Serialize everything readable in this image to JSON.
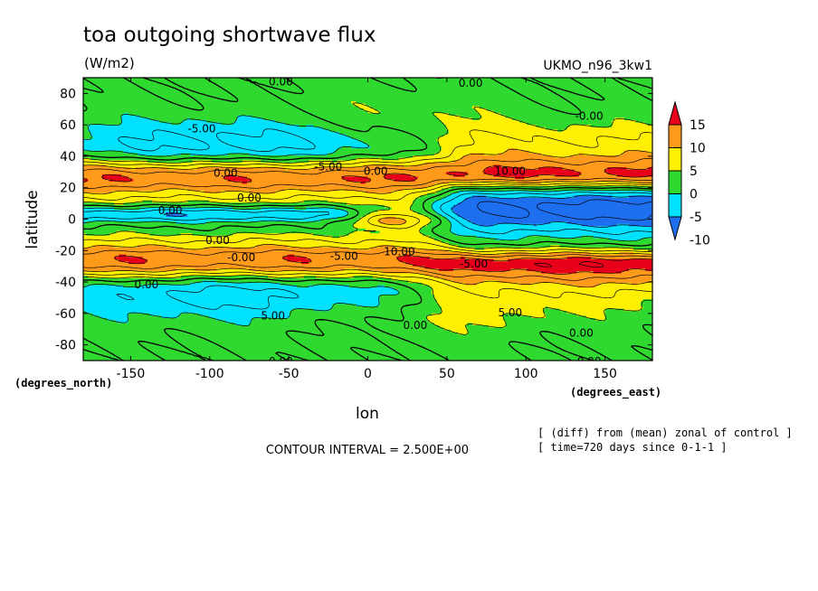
{
  "title": "toa outgoing shortwave flux",
  "units": "(W/m2)",
  "model": "UKMO_n96_3kw1",
  "chart_data": {
    "type": "heatmap",
    "title": "toa outgoing shortwave flux",
    "units": "(W/m2)",
    "xlabel": "lon",
    "ylabel": "latitude",
    "x_unit_label": "(degrees_east)",
    "y_unit_label": "(degrees_north)",
    "xlim": [
      -180,
      180
    ],
    "ylim": [
      -90,
      90
    ],
    "x_ticks": [
      -150,
      -100,
      -50,
      0,
      50,
      100,
      150
    ],
    "y_ticks": [
      -80,
      -60,
      -40,
      -20,
      0,
      20,
      40,
      60,
      80
    ],
    "colorbar": {
      "levels": [
        -10,
        -5,
        0,
        5,
        10,
        15
      ],
      "colors": [
        "#1e6ff0",
        "#00e0ff",
        "#2fd92f",
        "#ffef00",
        "#ff9a1a",
        "#e8001a"
      ]
    },
    "contour_labels": [
      {
        "text": "0.00",
        "lon": -55,
        "lat": 88
      },
      {
        "text": "0.00",
        "lon": 65,
        "lat": 87
      },
      {
        "text": "-5.00",
        "lon": -105,
        "lat": 58
      },
      {
        "text": "-0.00",
        "lon": 140,
        "lat": 66
      },
      {
        "text": "-5.00",
        "lon": -25,
        "lat": 34
      },
      {
        "text": "0.00",
        "lon": 5,
        "lat": 31
      },
      {
        "text": "10.00",
        "lon": 90,
        "lat": 31
      },
      {
        "text": "0.00",
        "lon": -90,
        "lat": 30
      },
      {
        "text": "0.00",
        "lon": -75,
        "lat": 14
      },
      {
        "text": "0.00",
        "lon": -125,
        "lat": 6
      },
      {
        "text": "0.00",
        "lon": -95,
        "lat": -13
      },
      {
        "text": "-0.00",
        "lon": -80,
        "lat": -24
      },
      {
        "text": "-5.00",
        "lon": -15,
        "lat": -23
      },
      {
        "text": "10.00",
        "lon": 20,
        "lat": -20
      },
      {
        "text": "-5.00",
        "lon": 67,
        "lat": -28
      },
      {
        "text": "0.00",
        "lon": -140,
        "lat": -41
      },
      {
        "text": "5.00",
        "lon": -60,
        "lat": -61
      },
      {
        "text": "5.00",
        "lon": 90,
        "lat": -59
      },
      {
        "text": "0.00",
        "lon": 30,
        "lat": -67
      },
      {
        "text": "0.00",
        "lon": 135,
        "lat": -72
      },
      {
        "text": "0.00",
        "lon": -55,
        "lat": -90
      },
      {
        "text": "0.00",
        "lon": 140,
        "lat": -90
      }
    ]
  },
  "footer": {
    "contour_interval": "CONTOUR INTERVAL = 2.500E+00",
    "note_line1": "[ (diff) from (mean) zonal of control ]",
    "note_line2": "[ time=720 days since 0-1-1 ]"
  }
}
